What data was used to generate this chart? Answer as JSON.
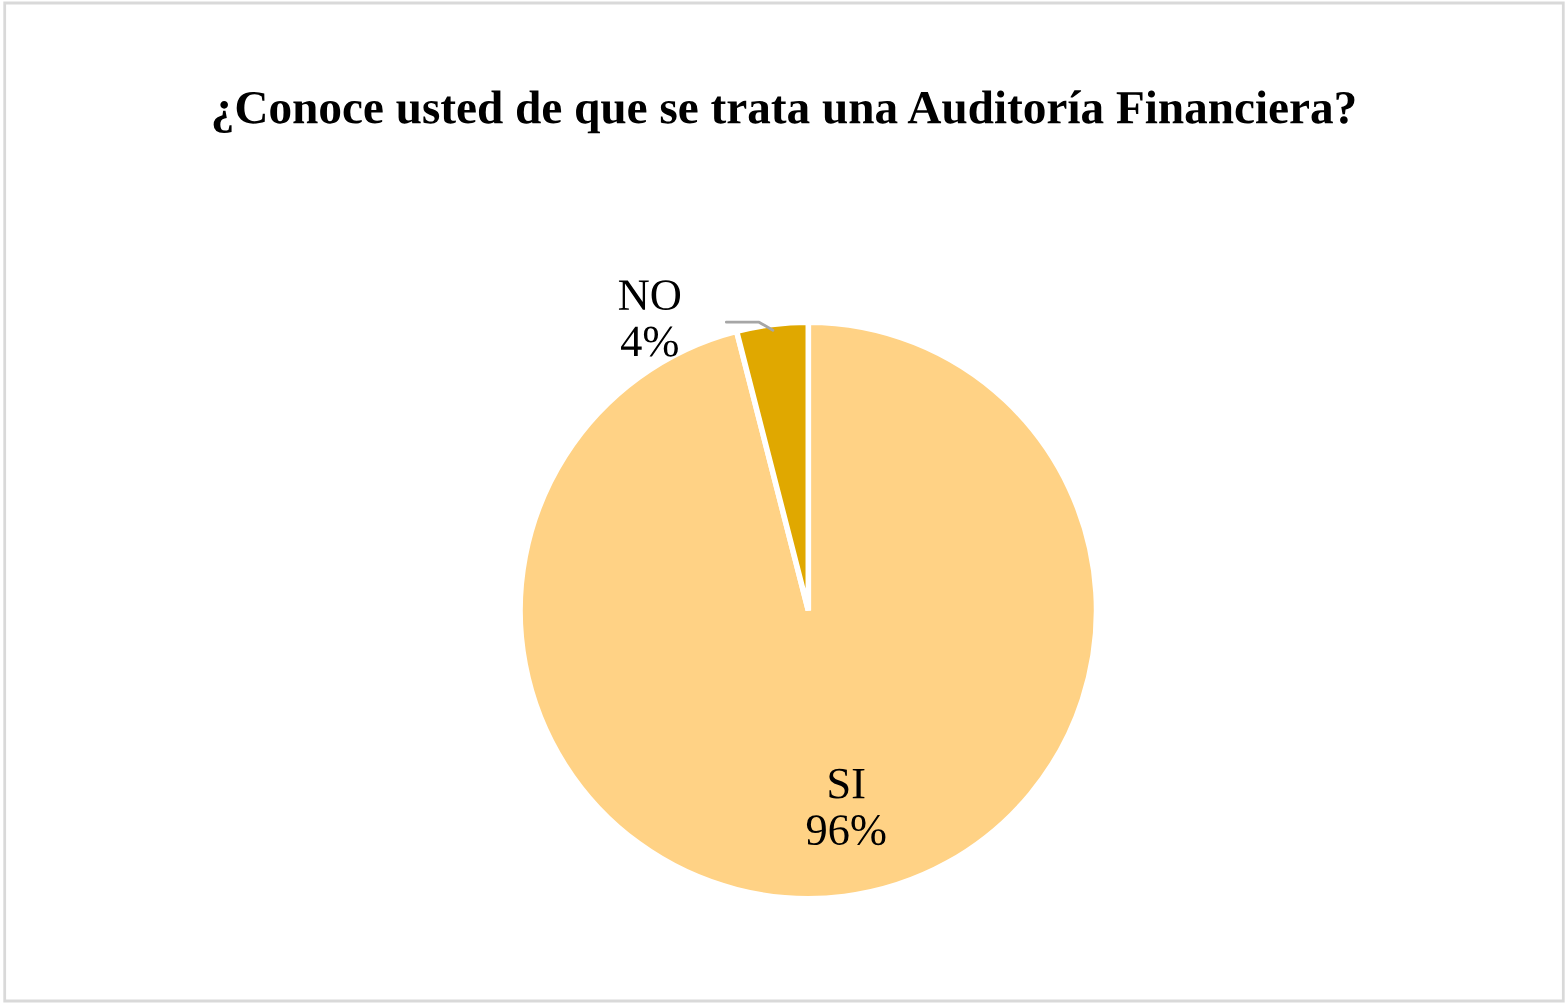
{
  "chart_data": {
    "type": "pie",
    "title": "¿Conoce usted de que se trata una Auditoría Financiera?",
    "categories": [
      "SI",
      "NO"
    ],
    "values": [
      96,
      4
    ],
    "value_labels": [
      "96%",
      "4%"
    ],
    "colors": [
      "#ffd285",
      "#e0a800"
    ],
    "legend": false
  }
}
